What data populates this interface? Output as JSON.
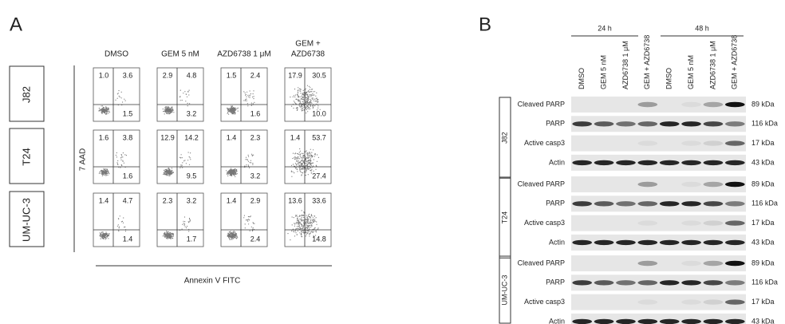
{
  "panel_a": {
    "label": "A",
    "columns": [
      [
        "DMSO"
      ],
      [
        "GEM 5 nM"
      ],
      [
        "AZD6738 1 μM"
      ],
      [
        "GEM +",
        "AZD6738"
      ]
    ],
    "rows": [
      {
        "label": "J82",
        "cells": [
          [
            "1.0",
            "3.6",
            "1.5"
          ],
          [
            "2.9",
            "4.8",
            "3.2"
          ],
          [
            "1.5",
            "2.4",
            "1.6"
          ],
          [
            "17.9",
            "30.5",
            "10.0"
          ]
        ]
      },
      {
        "label": "T24",
        "cells": [
          [
            "1.6",
            "3.8",
            "1.6"
          ],
          [
            "12.9",
            "14.2",
            "9.5"
          ],
          [
            "1.4",
            "2.3",
            "3.2"
          ],
          [
            "1.4",
            "53.7",
            "27.4"
          ]
        ]
      },
      {
        "label": "UM-UC-3",
        "cells": [
          [
            "1.4",
            "4.7",
            "1.4"
          ],
          [
            "2.3",
            "3.2",
            "1.7"
          ],
          [
            "1.4",
            "2.9",
            "2.4"
          ],
          [
            "13.6",
            "33.6",
            "14.8"
          ]
        ]
      }
    ],
    "y_axis_label": "7 AAD",
    "x_axis_label": "Annexin V FITC"
  },
  "panel_b": {
    "label": "B",
    "time_points": [
      "24 h",
      "48 h"
    ],
    "lanes": [
      "DMSO",
      "GEM 5 nM",
      "AZD6738 1 μM",
      "GEM + AZD6738",
      "DMSO",
      "GEM 5 nM",
      "AZD6738 1 μM",
      "GEM + AZD6738"
    ],
    "blocks": [
      {
        "cell_line": "J82",
        "rows": [
          {
            "protein": "Cleaved PARP",
            "size": "89 kDa"
          },
          {
            "protein": "PARP",
            "size": "116 kDa"
          },
          {
            "protein": "Active casp3",
            "size": "17 kDa"
          },
          {
            "protein": "Actin",
            "size": "43 kDa"
          }
        ]
      },
      {
        "cell_line": "T24",
        "rows": [
          {
            "protein": "Cleaved PARP",
            "size": "89 kDa"
          },
          {
            "protein": "PARP",
            "size": "116 kDa"
          },
          {
            "protein": "Active casp3",
            "size": "17 kDa"
          },
          {
            "protein": "Actin",
            "size": "43 kDa"
          }
        ]
      },
      {
        "cell_line": "UM-UC-3",
        "rows": [
          {
            "protein": "Cleaved PARP",
            "size": "89 kDa"
          },
          {
            "protein": "PARP",
            "size": "116 kDa"
          },
          {
            "protein": "Active casp3",
            "size": "17 kDa"
          },
          {
            "protein": "Actin",
            "size": "43 kDa"
          }
        ]
      }
    ]
  }
}
